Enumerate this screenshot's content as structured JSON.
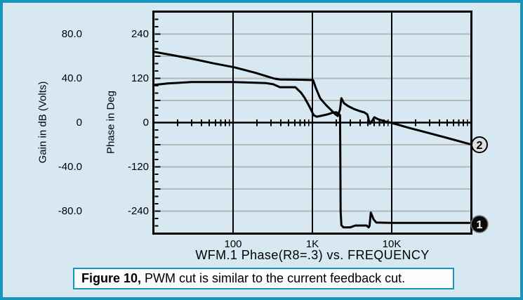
{
  "colors": {
    "page_background": "#d7e8f3",
    "frame_teal": "#1795ba",
    "grid_gray": "#b5b8b5",
    "curve_black": "#000000",
    "marker2_fill": "#dedede",
    "marker1_fill": "#0a0a0a"
  },
  "y_axis_gain": {
    "title": "Gain in dB (Volts)",
    "ticks": [
      {
        "label": "80.0",
        "value": 80
      },
      {
        "label": "40.0",
        "value": 40
      },
      {
        "label": "0",
        "value": 0
      },
      {
        "label": "-40.0",
        "value": -40
      },
      {
        "label": "-80.0",
        "value": -80
      }
    ],
    "range_db": [
      -100,
      100
    ]
  },
  "y_axis_phase": {
    "title": "Phase in Deg",
    "ticks": [
      {
        "label": "240",
        "value": 240
      },
      {
        "label": "120",
        "value": 120
      },
      {
        "label": "0",
        "value": 0
      },
      {
        "label": "-120",
        "value": -120
      },
      {
        "label": "-240",
        "value": -240
      }
    ],
    "range_deg": [
      -300,
      300
    ],
    "gridlines_deg": [
      240,
      180,
      120,
      60,
      -60,
      -120,
      -180,
      -240
    ],
    "minor_tick_step_deg": 20
  },
  "x_axis": {
    "title": "WFM.1 Phase(R8=.3) vs. FREQUENCY",
    "scale": "log",
    "range_hz": [
      10,
      100000
    ],
    "ticks": [
      {
        "label": "100",
        "value": 100
      },
      {
        "label": "1K",
        "value": 1000
      },
      {
        "label": "10K",
        "value": 10000
      }
    ]
  },
  "markers": [
    {
      "label": "2",
      "series": "gain_db"
    },
    {
      "label": "1",
      "series": "phase_deg"
    }
  ],
  "caption": {
    "figure_label": "Figure 10,",
    "text": " PWM cut is similar to the current feedback cut."
  },
  "chart_data": {
    "type": "line",
    "x_unit": "Hz",
    "x_scale": "log",
    "grid": true,
    "series": [
      {
        "name": "gain_db",
        "marker": "2",
        "axis": "gain",
        "points": [
          [
            10,
            64
          ],
          [
            17,
            61
          ],
          [
            31,
            57.5
          ],
          [
            57,
            53.5
          ],
          [
            104,
            50
          ],
          [
            190,
            45
          ],
          [
            335,
            39.7
          ],
          [
            390,
            39
          ],
          [
            700,
            38.7
          ],
          [
            1020,
            38.4
          ],
          [
            1110,
            31
          ],
          [
            1250,
            22
          ],
          [
            1480,
            16
          ],
          [
            1740,
            11
          ],
          [
            1960,
            7.3
          ],
          [
            2090,
            6
          ],
          [
            2230,
            12
          ],
          [
            2320,
            22
          ],
          [
            2500,
            17.5
          ],
          [
            2810,
            15
          ],
          [
            3320,
            12.4
          ],
          [
            3920,
            10.5
          ],
          [
            4520,
            9.2
          ],
          [
            4930,
            7.3
          ],
          [
            5110,
            3
          ],
          [
            5320,
            -1
          ],
          [
            5660,
            1.6
          ],
          [
            6030,
            4.8
          ],
          [
            6810,
            2.9
          ],
          [
            8350,
            1
          ],
          [
            10000,
            -0.3
          ],
          [
            16600,
            -4.8
          ],
          [
            30600,
            -9.8
          ],
          [
            56600,
            -14.9
          ],
          [
            96000,
            -19.4
          ]
        ]
      },
      {
        "name": "phase_deg",
        "marker": "1",
        "axis": "phase",
        "points": [
          [
            10,
            102
          ],
          [
            15,
            106
          ],
          [
            30,
            110
          ],
          [
            100,
            110
          ],
          [
            260,
            107
          ],
          [
            320,
            104
          ],
          [
            390,
            96
          ],
          [
            610,
            96
          ],
          [
            720,
            81
          ],
          [
            800,
            67
          ],
          [
            920,
            43
          ],
          [
            1040,
            20
          ],
          [
            1130,
            16
          ],
          [
            1330,
            19
          ],
          [
            1540,
            22
          ],
          [
            1810,
            27
          ],
          [
            2000,
            28
          ],
          [
            2140,
            24
          ],
          [
            2230,
            20
          ],
          [
            2250,
            -100
          ],
          [
            2270,
            -240
          ],
          [
            2320,
            -278
          ],
          [
            2460,
            -284
          ],
          [
            3000,
            -284
          ],
          [
            3480,
            -279
          ],
          [
            4830,
            -279
          ],
          [
            5110,
            -284
          ],
          [
            5250,
            -280
          ],
          [
            5450,
            -244
          ],
          [
            5900,
            -262
          ],
          [
            6400,
            -271
          ],
          [
            10000,
            -272
          ],
          [
            95000,
            -272
          ]
        ]
      }
    ]
  }
}
